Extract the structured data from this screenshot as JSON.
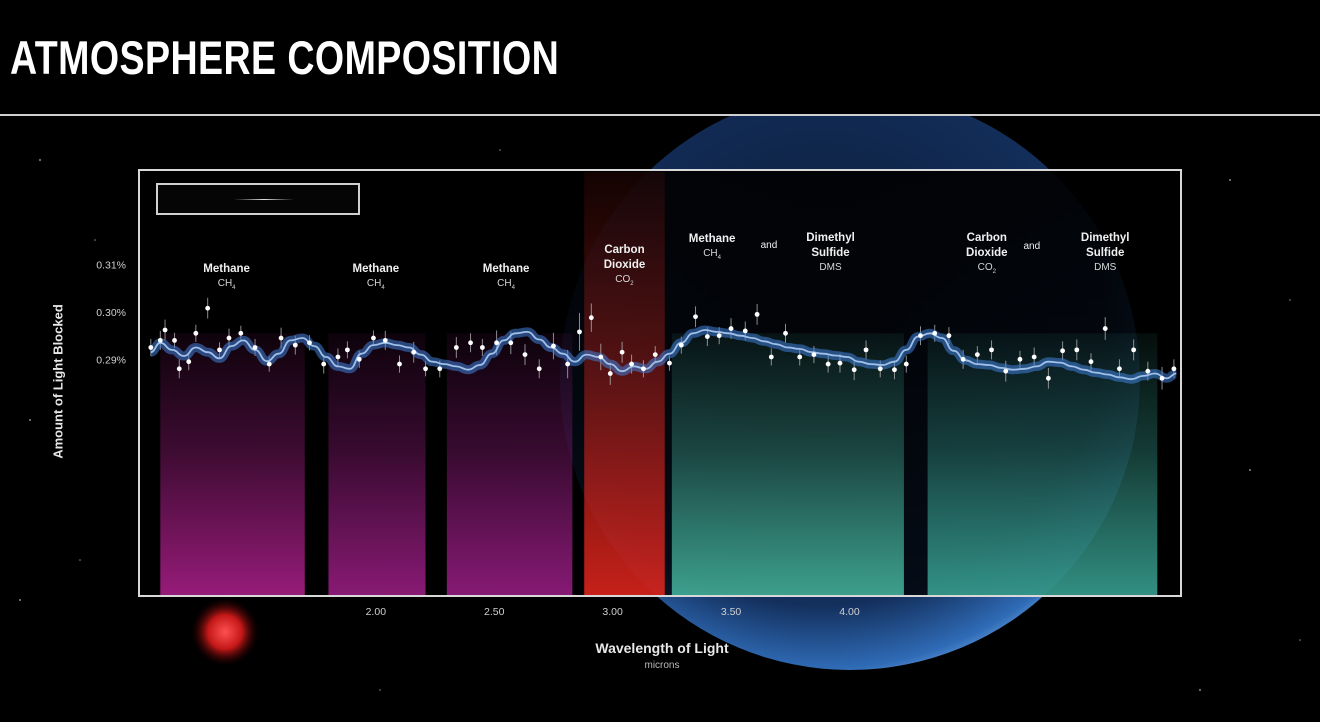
{
  "page": {
    "title": "ATMOSPHERE COMPOSITION"
  },
  "chart_data": {
    "type": "line",
    "title": "",
    "xlabel": "Wavelength of Light",
    "xunit": "microns",
    "ylabel": "Amount of Light Blocked",
    "xlim": [
      1.0,
      5.4
    ],
    "ylim": [
      0.24,
      0.33
    ],
    "x_ticks": [
      {
        "value": 2.0,
        "label": "2.00"
      },
      {
        "value": 2.5,
        "label": "2.50"
      },
      {
        "value": 3.0,
        "label": "3.00"
      },
      {
        "value": 3.5,
        "label": "3.50"
      },
      {
        "value": 4.0,
        "label": "4.00"
      }
    ],
    "y_ticks": [
      {
        "value": 0.29,
        "label": "0.29%"
      },
      {
        "value": 0.3,
        "label": "0.30%"
      },
      {
        "value": 0.31,
        "label": "0.31%"
      }
    ],
    "grid": false,
    "bands": [
      {
        "x0": 1.09,
        "x1": 1.7,
        "molecule": "Methane",
        "formula": "CH",
        "sub": "4",
        "color": "#b0208e"
      },
      {
        "x0": 1.8,
        "x1": 2.21,
        "molecule": "Methane",
        "formula": "CH",
        "sub": "4",
        "color": "#a01e88"
      },
      {
        "x0": 2.3,
        "x1": 2.83,
        "molecule": "Methane",
        "formula": "CH",
        "sub": "4",
        "color": "#9e1e88"
      },
      {
        "x0": 2.88,
        "x1": 3.22,
        "molecule": "Carbon Dioxide",
        "formula": "CO",
        "sub": "2",
        "color": "#e8261e"
      },
      {
        "x0": 3.25,
        "x1": 4.23,
        "molecule": "Methane and Dimethyl Sulfide",
        "formula": "CH",
        "sub": "4",
        "color": "#46b8a0"
      },
      {
        "x0": 4.33,
        "x1": 5.3,
        "molecule": "Carbon Dioxide and Dimethyl Sulfide",
        "formula": "CO",
        "sub": "2",
        "color": "#3aa898"
      }
    ],
    "annotations": [
      {
        "x": 1.37,
        "y": 0.3084,
        "lines": [
          "Methane"
        ],
        "formula": "CH",
        "sub": "4"
      },
      {
        "x": 2.0,
        "y": 0.3084,
        "lines": [
          "Methane"
        ],
        "formula": "CH",
        "sub": "4"
      },
      {
        "x": 2.55,
        "y": 0.3084,
        "lines": [
          "Methane"
        ],
        "formula": "CH",
        "sub": "4"
      },
      {
        "x": 3.05,
        "y": 0.3125,
        "lines": [
          "Carbon",
          "Dioxide"
        ],
        "formula": "CO",
        "sub": "2"
      },
      {
        "x": 3.42,
        "y": 0.3148,
        "lines": [
          "Methane"
        ],
        "formula": "CH",
        "sub": "4"
      },
      {
        "x": 3.66,
        "y": 0.3135,
        "lines": [
          "and"
        ]
      },
      {
        "x": 3.92,
        "y": 0.315,
        "lines": [
          "Dimethyl",
          "Sulfide"
        ],
        "extra": "DMS"
      },
      {
        "x": 4.58,
        "y": 0.315,
        "lines": [
          "Carbon",
          "Dioxide"
        ],
        "formula": "CO",
        "sub": "2"
      },
      {
        "x": 4.77,
        "y": 0.3133,
        "lines": [
          "and"
        ]
      },
      {
        "x": 5.08,
        "y": 0.315,
        "lines": [
          "Dimethyl",
          "Sulfide"
        ],
        "extra": "DMS"
      }
    ],
    "series": [
      {
        "kind": "model",
        "x": [
          1.05,
          1.09,
          1.14,
          1.19,
          1.24,
          1.29,
          1.34,
          1.39,
          1.44,
          1.49,
          1.54,
          1.59,
          1.64,
          1.69,
          1.74,
          1.79,
          1.84,
          1.89,
          1.94,
          1.99,
          2.04,
          2.09,
          2.14,
          2.19,
          2.24,
          2.29,
          2.34,
          2.39,
          2.44,
          2.49,
          2.54,
          2.59,
          2.64,
          2.69,
          2.74,
          2.79,
          2.84,
          2.89,
          2.94,
          2.99,
          3.04,
          3.09,
          3.14,
          3.19,
          3.24,
          3.29,
          3.34,
          3.39,
          3.44,
          3.49,
          3.54,
          3.59,
          3.64,
          3.69,
          3.74,
          3.79,
          3.84,
          3.89,
          3.94,
          3.99,
          4.04,
          4.09,
          4.14,
          4.19,
          4.24,
          4.29,
          4.34,
          4.39,
          4.44,
          4.49,
          4.54,
          4.59,
          4.64,
          4.69,
          4.74,
          4.79,
          4.84,
          4.89,
          4.94,
          4.99,
          5.04,
          5.09,
          5.14,
          5.19,
          5.24,
          5.29,
          5.34,
          5.38
        ],
        "y": [
          0.2915,
          0.2935,
          0.292,
          0.2907,
          0.2925,
          0.2915,
          0.2902,
          0.2928,
          0.294,
          0.292,
          0.2896,
          0.2912,
          0.294,
          0.2945,
          0.2928,
          0.2905,
          0.2885,
          0.288,
          0.2912,
          0.293,
          0.2935,
          0.293,
          0.2925,
          0.291,
          0.2895,
          0.289,
          0.2885,
          0.2878,
          0.2888,
          0.2912,
          0.294,
          0.2955,
          0.2958,
          0.2942,
          0.2925,
          0.2912,
          0.2895,
          0.291,
          0.2905,
          0.289,
          0.2875,
          0.2885,
          0.288,
          0.2895,
          0.2912,
          0.2935,
          0.2955,
          0.2962,
          0.2958,
          0.2955,
          0.295,
          0.2945,
          0.2938,
          0.2932,
          0.2925,
          0.2922,
          0.2915,
          0.2912,
          0.2908,
          0.2905,
          0.2895,
          0.289,
          0.2888,
          0.2895,
          0.292,
          0.2948,
          0.2955,
          0.2945,
          0.2918,
          0.2898,
          0.289,
          0.2888,
          0.2882,
          0.2878,
          0.288,
          0.2885,
          0.2895,
          0.2893,
          0.2885,
          0.2878,
          0.2872,
          0.2868,
          0.2862,
          0.2858,
          0.2865,
          0.287,
          0.286,
          0.287
        ]
      },
      {
        "kind": "observed",
        "x": [
          1.05,
          1.09,
          1.11,
          1.15,
          1.17,
          1.21,
          1.24,
          1.29,
          1.34,
          1.38,
          1.43,
          1.49,
          1.55,
          1.6,
          1.66,
          1.72,
          1.78,
          1.84,
          1.88,
          1.93,
          1.99,
          2.04,
          2.1,
          2.16,
          2.21,
          2.27,
          2.34,
          2.4,
          2.45,
          2.51,
          2.57,
          2.63,
          2.69,
          2.75,
          2.81,
          2.86,
          2.91,
          2.95,
          2.99,
          3.04,
          3.08,
          3.13,
          3.18,
          3.24,
          3.29,
          3.35,
          3.4,
          3.45,
          3.5,
          3.56,
          3.61,
          3.67,
          3.73,
          3.79,
          3.85,
          3.91,
          3.96,
          4.02,
          4.07,
          4.13,
          4.19,
          4.24,
          4.3,
          4.36,
          4.42,
          4.48,
          4.54,
          4.6,
          4.66,
          4.72,
          4.78,
          4.84,
          4.9,
          4.96,
          5.02,
          5.08,
          5.14,
          5.2,
          5.26,
          5.32,
          5.37
        ],
        "y": [
          0.2925,
          0.294,
          0.2962,
          0.294,
          0.288,
          0.2895,
          0.2955,
          0.3008,
          0.292,
          0.2945,
          0.2955,
          0.2925,
          0.289,
          0.2945,
          0.293,
          0.2935,
          0.289,
          0.2905,
          0.292,
          0.29,
          0.2945,
          0.294,
          0.289,
          0.2915,
          0.288,
          0.288,
          0.2925,
          0.2935,
          0.2925,
          0.2935,
          0.2935,
          0.291,
          0.288,
          0.2928,
          0.289,
          0.2958,
          0.2988,
          0.2905,
          0.287,
          0.2915,
          0.289,
          0.288,
          0.291,
          0.2892,
          0.293,
          0.299,
          0.2948,
          0.295,
          0.2965,
          0.296,
          0.2995,
          0.2905,
          0.2955,
          0.2905,
          0.291,
          0.289,
          0.2892,
          0.2878,
          0.292,
          0.288,
          0.2878,
          0.289,
          0.295,
          0.2955,
          0.295,
          0.29,
          0.291,
          0.292,
          0.2875,
          0.29,
          0.2905,
          0.286,
          0.2918,
          0.292,
          0.2895,
          0.2965,
          0.288,
          0.292,
          0.2875,
          0.286,
          0.288
        ],
        "err": [
          0.0018,
          0.002,
          0.0022,
          0.0016,
          0.002,
          0.0018,
          0.0018,
          0.0022,
          0.0016,
          0.002,
          0.0016,
          0.0018,
          0.0016,
          0.0022,
          0.002,
          0.0016,
          0.002,
          0.0018,
          0.0018,
          0.0018,
          0.0016,
          0.002,
          0.0018,
          0.0022,
          0.0016,
          0.0018,
          0.0022,
          0.002,
          0.0018,
          0.0026,
          0.0024,
          0.0022,
          0.002,
          0.0028,
          0.003,
          0.004,
          0.003,
          0.0028,
          0.0024,
          0.0022,
          0.002,
          0.0018,
          0.0018,
          0.0016,
          0.0018,
          0.0022,
          0.002,
          0.0018,
          0.0022,
          0.002,
          0.0022,
          0.0018,
          0.002,
          0.0018,
          0.0018,
          0.0018,
          0.002,
          0.0022,
          0.002,
          0.0018,
          0.002,
          0.0018,
          0.002,
          0.0018,
          0.0018,
          0.002,
          0.0018,
          0.002,
          0.0022,
          0.0018,
          0.002,
          0.0022,
          0.002,
          0.0022,
          0.0018,
          0.0024,
          0.002,
          0.0022,
          0.002,
          0.0024,
          0.002
        ]
      }
    ],
    "colors": {
      "model": "#3f7fd8",
      "model_light": "#9fc0ea",
      "points": "#ffffff",
      "errorbars": "#b8b8b8",
      "frame": "#d8d8d8"
    }
  }
}
